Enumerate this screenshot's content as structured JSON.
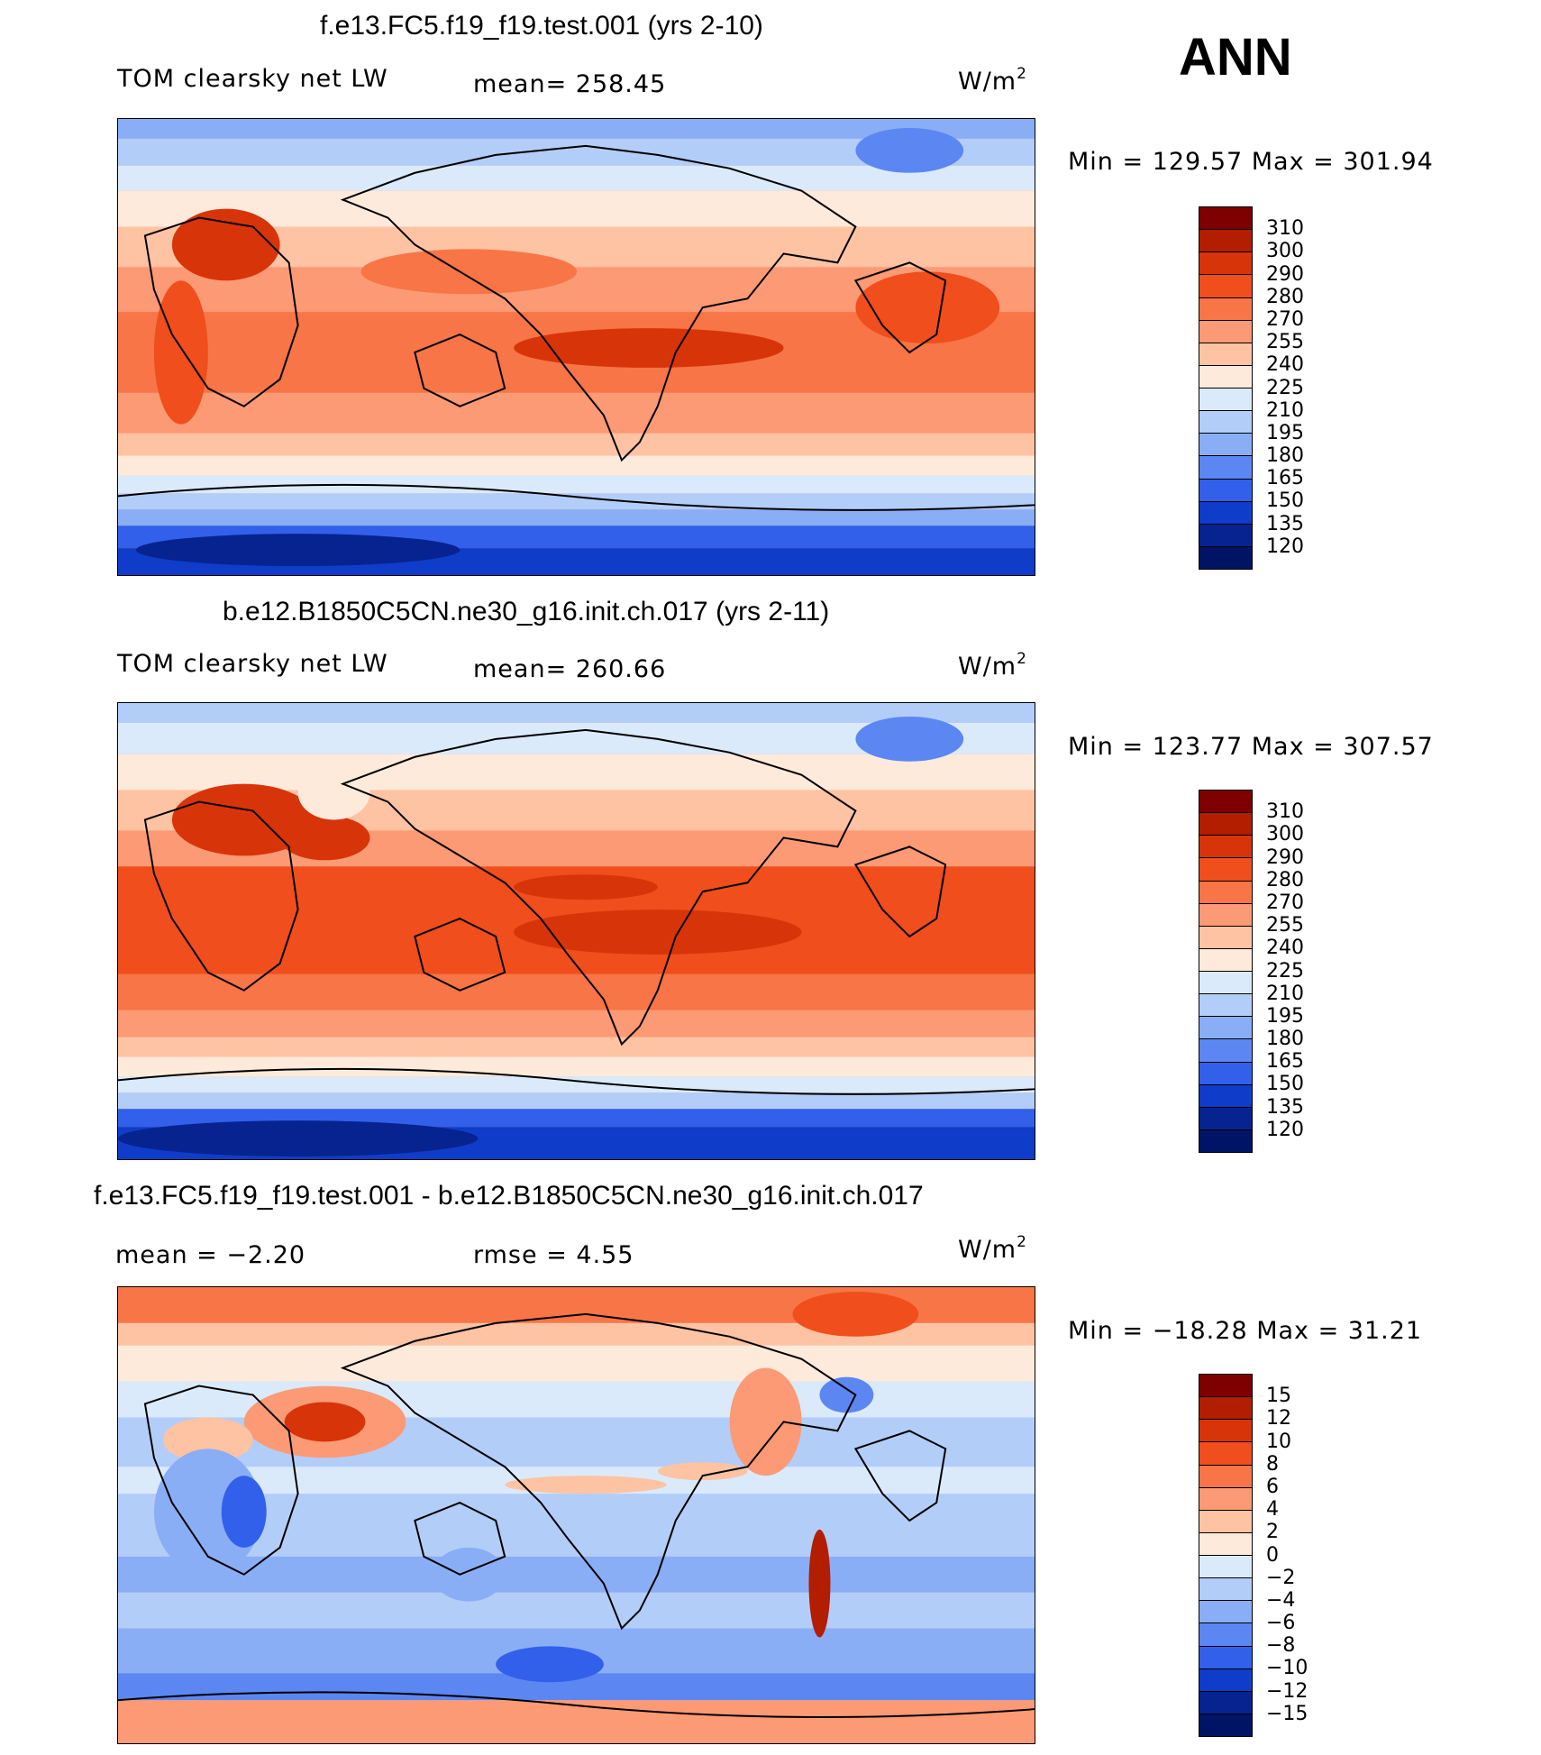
{
  "season": "ANN",
  "panels": [
    {
      "title": "f.e13.FC5.f19_f19.test.001 (yrs 2-10)",
      "variable": "TOM clearsky net LW",
      "mean_text": "mean= 258.45",
      "units": "W/m",
      "units_sup": "2",
      "minmax": "Min = 129.57 Max = 301.94"
    },
    {
      "title": "b.e12.B1850C5CN.ne30_g16.init.ch.017 (yrs 2-11)",
      "variable": "TOM clearsky net LW",
      "mean_text": "mean= 260.66",
      "units": "W/m",
      "units_sup": "2",
      "minmax": "Min = 123.77 Max = 307.57"
    },
    {
      "title": "f.e13.FC5.f19_f19.test.001 - b.e12.B1850C5CN.ne30_g16.init.ch.017",
      "mean_text": "mean =   −2.20",
      "rmse_text": "rmse =    4.55",
      "units": "W/m",
      "units_sup": "2",
      "minmax": "Min = −18.28 Max =   31.21"
    }
  ],
  "colorbars": [
    {
      "labels": [
        "310",
        "300",
        "290",
        "280",
        "270",
        "255",
        "240",
        "225",
        "210",
        "195",
        "180",
        "165",
        "150",
        "135",
        "120"
      ],
      "colors": [
        "#7f0000",
        "#b31d00",
        "#d8340a",
        "#f04e1c",
        "#f77547",
        "#fb9a74",
        "#fdc3a3",
        "#feeadb",
        "#dbeafb",
        "#b3cdf9",
        "#8aaef6",
        "#5c87f2",
        "#3260ea",
        "#0f3cc9",
        "#06238f",
        "#001466"
      ]
    },
    {
      "labels": [
        "310",
        "300",
        "290",
        "280",
        "270",
        "255",
        "240",
        "225",
        "210",
        "195",
        "180",
        "165",
        "150",
        "135",
        "120"
      ],
      "colors": [
        "#7f0000",
        "#b31d00",
        "#d8340a",
        "#f04e1c",
        "#f77547",
        "#fb9a74",
        "#fdc3a3",
        "#feeadb",
        "#dbeafb",
        "#b3cdf9",
        "#8aaef6",
        "#5c87f2",
        "#3260ea",
        "#0f3cc9",
        "#06238f",
        "#001466"
      ]
    },
    {
      "labels": [
        "15",
        "12",
        "10",
        "8",
        "6",
        "4",
        "2",
        "0",
        "−2",
        "−4",
        "−6",
        "−8",
        "−10",
        "−12",
        "−15"
      ],
      "colors": [
        "#7f0000",
        "#b31d00",
        "#d8340a",
        "#f04e1c",
        "#f77547",
        "#fb9a74",
        "#fdc3a3",
        "#feeadb",
        "#dbeafb",
        "#b3cdf9",
        "#8aaef6",
        "#5c87f2",
        "#3260ea",
        "#0f3cc9",
        "#06238f",
        "#001466"
      ]
    }
  ]
}
